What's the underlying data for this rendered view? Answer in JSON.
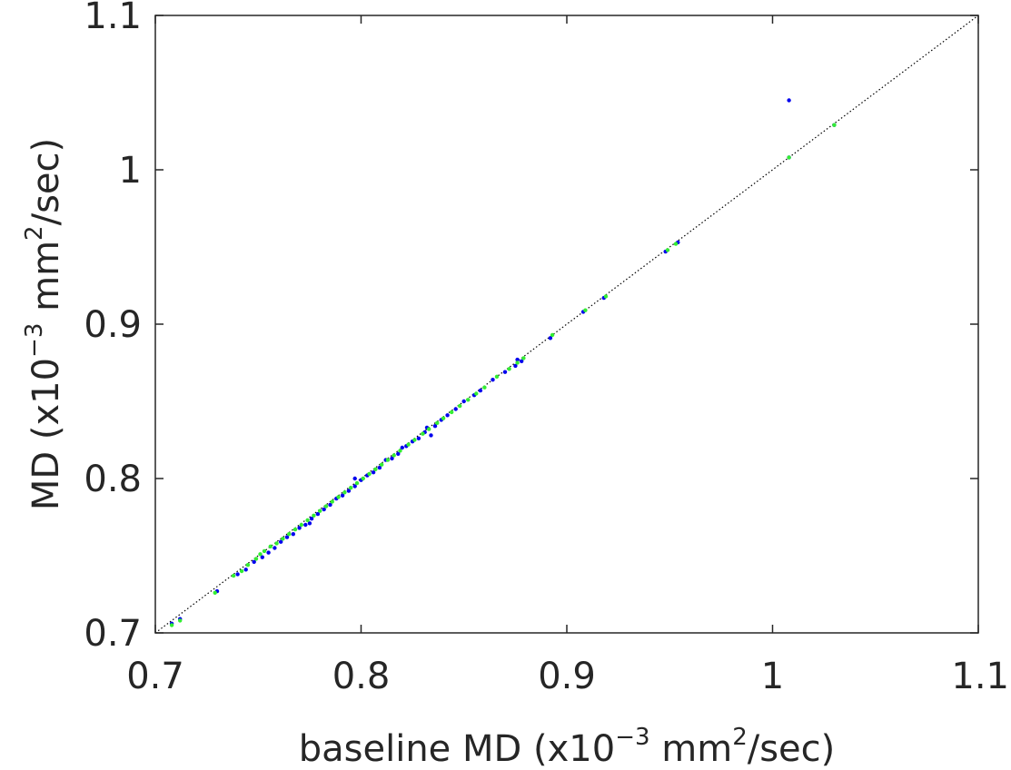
{
  "chart_data": {
    "type": "scatter",
    "title": "",
    "xlabel": {
      "prefix": "baseline MD (x10",
      "exp1": "−3",
      "middle": " mm",
      "exp2": "2",
      "suffix": "/sec)"
    },
    "ylabel": {
      "prefix": "MD (x10",
      "exp1": "−3",
      "middle": " mm",
      "exp2": "2",
      "suffix": "/sec)"
    },
    "xlim": [
      0.7,
      1.1
    ],
    "ylim": [
      0.7,
      1.1
    ],
    "x_ticks": [
      0.7,
      0.8,
      0.9,
      1.0,
      1.1
    ],
    "x_tick_labels": [
      "0.7",
      "0.8",
      "0.9",
      "1",
      "1.1"
    ],
    "y_ticks": [
      0.7,
      0.8,
      0.9,
      1.0,
      1.1
    ],
    "y_tick_labels": [
      "0.7",
      "0.8",
      "0.9",
      "1",
      "1.1"
    ],
    "grid": false,
    "identity_line": {
      "from": [
        0.7,
        0.7
      ],
      "to": [
        1.1,
        1.1
      ],
      "style": "dotted",
      "color": "#000000"
    },
    "series": [
      {
        "color": "#0000ee",
        "points": [
          [
            0.708,
            0.706
          ],
          [
            0.712,
            0.709
          ],
          [
            0.73,
            0.727
          ],
          [
            0.74,
            0.738
          ],
          [
            0.744,
            0.741
          ],
          [
            0.748,
            0.746
          ],
          [
            0.752,
            0.749
          ],
          [
            0.755,
            0.752
          ],
          [
            0.758,
            0.755
          ],
          [
            0.761,
            0.759
          ],
          [
            0.764,
            0.762
          ],
          [
            0.767,
            0.764
          ],
          [
            0.77,
            0.768
          ],
          [
            0.773,
            0.77
          ],
          [
            0.775,
            0.771
          ],
          [
            0.776,
            0.774
          ],
          [
            0.779,
            0.777
          ],
          [
            0.782,
            0.78
          ],
          [
            0.785,
            0.783
          ],
          [
            0.788,
            0.787
          ],
          [
            0.791,
            0.789
          ],
          [
            0.794,
            0.792
          ],
          [
            0.797,
            0.795
          ],
          [
            0.797,
            0.8
          ],
          [
            0.8,
            0.799
          ],
          [
            0.803,
            0.802
          ],
          [
            0.806,
            0.804
          ],
          [
            0.809,
            0.807
          ],
          [
            0.812,
            0.812
          ],
          [
            0.815,
            0.813
          ],
          [
            0.818,
            0.816
          ],
          [
            0.82,
            0.82
          ],
          [
            0.822,
            0.821
          ],
          [
            0.825,
            0.824
          ],
          [
            0.828,
            0.826
          ],
          [
            0.831,
            0.83
          ],
          [
            0.832,
            0.833
          ],
          [
            0.834,
            0.828
          ],
          [
            0.836,
            0.834
          ],
          [
            0.839,
            0.838
          ],
          [
            0.842,
            0.841
          ],
          [
            0.846,
            0.845
          ],
          [
            0.85,
            0.85
          ],
          [
            0.855,
            0.854
          ],
          [
            0.858,
            0.857
          ],
          [
            0.864,
            0.864
          ],
          [
            0.87,
            0.869
          ],
          [
            0.875,
            0.873
          ],
          [
            0.876,
            0.877
          ],
          [
            0.878,
            0.876
          ],
          [
            0.892,
            0.891
          ],
          [
            0.908,
            0.908
          ],
          [
            0.918,
            0.917
          ],
          [
            0.948,
            0.947
          ],
          [
            0.954,
            0.953
          ],
          [
            1.008,
            1.045
          ],
          [
            1.008,
            1.008
          ],
          [
            1.03,
            1.029
          ]
        ]
      },
      {
        "color": "#33ee33",
        "points": [
          [
            0.708,
            0.705
          ],
          [
            0.712,
            0.708
          ],
          [
            0.729,
            0.726
          ],
          [
            0.738,
            0.737
          ],
          [
            0.742,
            0.74
          ],
          [
            0.745,
            0.744
          ],
          [
            0.749,
            0.748
          ],
          [
            0.751,
            0.751
          ],
          [
            0.753,
            0.753
          ],
          [
            0.756,
            0.756
          ],
          [
            0.759,
            0.758
          ],
          [
            0.762,
            0.761
          ],
          [
            0.765,
            0.764
          ],
          [
            0.768,
            0.767
          ],
          [
            0.771,
            0.77
          ],
          [
            0.774,
            0.773
          ],
          [
            0.777,
            0.776
          ],
          [
            0.78,
            0.779
          ],
          [
            0.783,
            0.782
          ],
          [
            0.786,
            0.785
          ],
          [
            0.789,
            0.788
          ],
          [
            0.792,
            0.791
          ],
          [
            0.795,
            0.794
          ],
          [
            0.798,
            0.797
          ],
          [
            0.801,
            0.8
          ],
          [
            0.804,
            0.803
          ],
          [
            0.807,
            0.806
          ],
          [
            0.81,
            0.809
          ],
          [
            0.813,
            0.812
          ],
          [
            0.816,
            0.815
          ],
          [
            0.819,
            0.818
          ],
          [
            0.823,
            0.822
          ],
          [
            0.826,
            0.825
          ],
          [
            0.83,
            0.829
          ],
          [
            0.833,
            0.832
          ],
          [
            0.837,
            0.836
          ],
          [
            0.84,
            0.839
          ],
          [
            0.844,
            0.843
          ],
          [
            0.848,
            0.847
          ],
          [
            0.852,
            0.851
          ],
          [
            0.856,
            0.855
          ],
          [
            0.86,
            0.859
          ],
          [
            0.866,
            0.866
          ],
          [
            0.872,
            0.871
          ],
          [
            0.876,
            0.875
          ],
          [
            0.879,
            0.878
          ],
          [
            0.893,
            0.893
          ],
          [
            0.909,
            0.909
          ],
          [
            0.919,
            0.918
          ],
          [
            0.949,
            0.948
          ],
          [
            0.953,
            0.952
          ],
          [
            1.008,
            1.008
          ],
          [
            1.03,
            1.029
          ]
        ]
      }
    ]
  }
}
